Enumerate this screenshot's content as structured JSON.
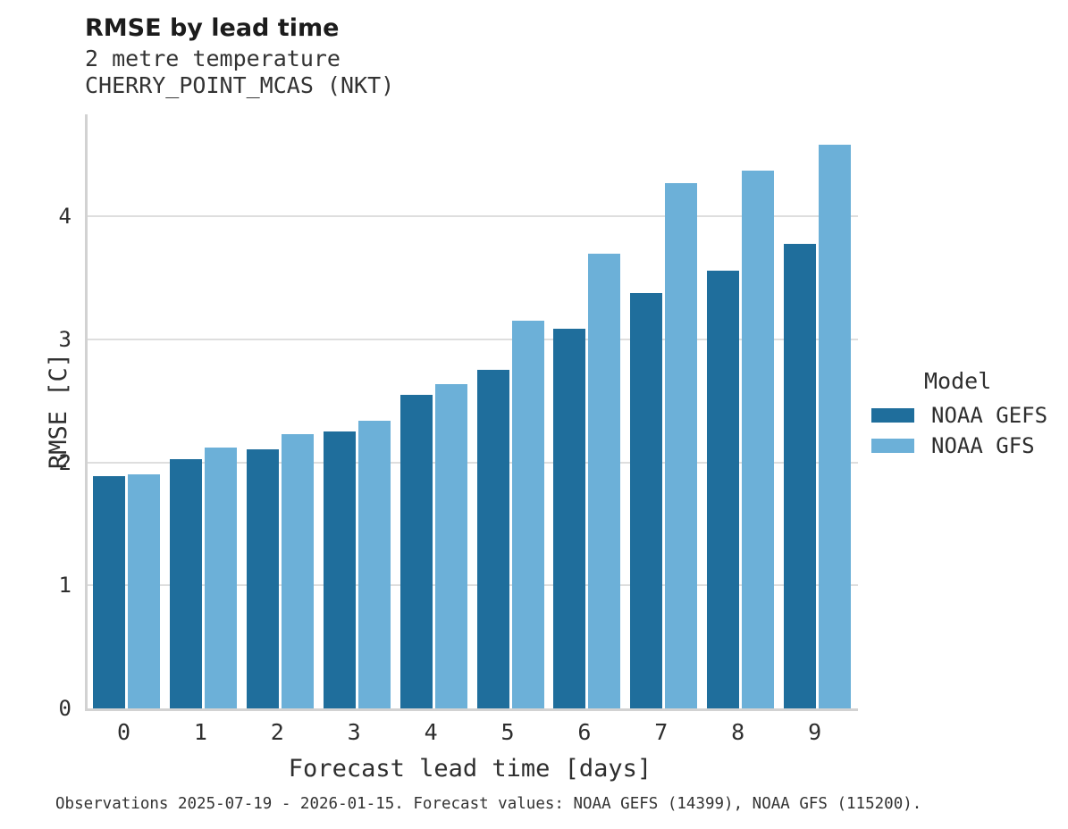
{
  "header": {
    "title": "RMSE by lead time",
    "subtitle": "2 metre temperature",
    "station": "CHERRY_POINT_MCAS (NKT)"
  },
  "axes": {
    "x_title": "Forecast lead time [days]",
    "y_title": "RMSE [C]",
    "y_ticks": [
      0,
      1,
      2,
      3,
      4
    ],
    "x_ticks": [
      "0",
      "1",
      "2",
      "3",
      "4",
      "5",
      "6",
      "7",
      "8",
      "9"
    ]
  },
  "legend": {
    "title": "Model",
    "entries": [
      {
        "label": "NOAA GEFS",
        "color": "#1f6e9c"
      },
      {
        "label": "NOAA GFS",
        "color": "#6cb0d8"
      }
    ]
  },
  "footnote": "Observations 2025-07-19 - 2026-01-15. Forecast values: NOAA GEFS (14399), NOAA GFS (115200).",
  "chart_data": {
    "type": "bar",
    "title": "RMSE by lead time",
    "subtitle": "2 metre temperature",
    "station": "CHERRY_POINT_MCAS (NKT)",
    "xlabel": "Forecast lead time [days]",
    "ylabel": "RMSE [C]",
    "categories": [
      0,
      1,
      2,
      3,
      4,
      5,
      6,
      7,
      8,
      9
    ],
    "series": [
      {
        "name": "NOAA GEFS",
        "color": "#1f6e9c",
        "values": [
          1.89,
          2.03,
          2.11,
          2.25,
          2.55,
          2.75,
          3.09,
          3.38,
          3.56,
          3.78
        ]
      },
      {
        "name": "NOAA GFS",
        "color": "#6cb0d8",
        "values": [
          1.9,
          2.12,
          2.23,
          2.34,
          2.64,
          3.15,
          3.7,
          4.27,
          4.37,
          4.58
        ]
      }
    ],
    "ylim": [
      0,
      4.83
    ],
    "grid": "horizontal",
    "legend_position": "right"
  }
}
